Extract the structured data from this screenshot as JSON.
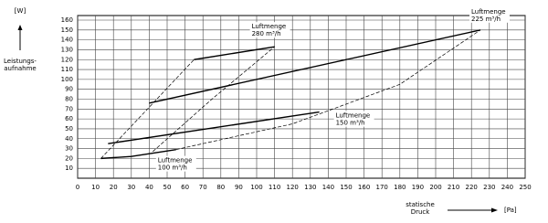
{
  "chart_data": {
    "type": "line",
    "y_unit": "[W]",
    "y_label_lines": [
      "Leistungs-",
      "aufnahme"
    ],
    "x_label_lines": [
      "statische",
      "Druck"
    ],
    "x_unit": "[Pa]",
    "xlim": [
      0,
      250
    ],
    "xticks": [
      0,
      10,
      20,
      30,
      40,
      50,
      60,
      70,
      80,
      90,
      100,
      110,
      120,
      130,
      140,
      150,
      160,
      170,
      180,
      190,
      200,
      210,
      220,
      230,
      240,
      250
    ],
    "ylim": [
      0,
      160
    ],
    "yticks": [
      10,
      20,
      30,
      40,
      50,
      60,
      70,
      80,
      90,
      100,
      110,
      120,
      130,
      140,
      150,
      160
    ],
    "grid": true,
    "series": [
      {
        "name": "Luftmenge",
        "flow": "280 m³/h",
        "color": "#000000",
        "x": [
          65,
          110
        ],
        "values": [
          120,
          133
        ]
      },
      {
        "name": "Luftmenge",
        "flow": "225 m³/h",
        "color": "#000000",
        "x": [
          40,
          225
        ],
        "values": [
          76,
          150
        ]
      },
      {
        "name": "Luftmenge",
        "flow": "150 m³/h",
        "color": "#000000",
        "x": [
          17,
          135
        ],
        "values": [
          35,
          67
        ]
      },
      {
        "name": "Luftmenge",
        "flow": "100 m³/h",
        "color": "#000000",
        "x": [
          13,
          30,
          55
        ],
        "values": [
          20,
          22,
          29
        ]
      },
      {
        "dash": true,
        "color": "#000000",
        "x": [
          13,
          65
        ],
        "values": [
          20,
          120
        ]
      },
      {
        "dash": true,
        "color": "#000000",
        "x": [
          42,
          75,
          110
        ],
        "values": [
          27,
          80,
          133
        ]
      },
      {
        "dash": true,
        "color": "#000000",
        "x": [
          55,
          120,
          180,
          225
        ],
        "values": [
          29,
          55,
          95,
          150
        ]
      }
    ]
  }
}
